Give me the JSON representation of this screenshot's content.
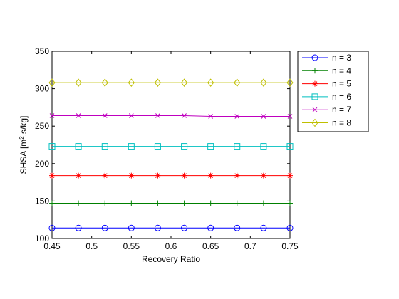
{
  "chart_data": {
    "type": "line",
    "title": "",
    "xlabel": "Recovery Ratio",
    "ylabel_main": "SHSA [m",
    "ylabel_sup": "2",
    "ylabel_tail": ".s/kg]",
    "xlim": [
      0.45,
      0.75
    ],
    "ylim": [
      100,
      350
    ],
    "xticks": [
      0.45,
      0.5,
      0.55,
      0.6,
      0.65,
      0.7,
      0.75
    ],
    "xtick_labels": [
      "0.45",
      "0.5",
      "0.55",
      "0.6",
      "0.65",
      "0.7",
      "0.75"
    ],
    "yticks": [
      100,
      150,
      200,
      250,
      300,
      350
    ],
    "ytick_labels": [
      "100",
      "150",
      "200",
      "250",
      "300",
      "350"
    ],
    "grid": false,
    "legend_position": "outside-top-right",
    "x": [
      0.45,
      0.4833,
      0.5167,
      0.55,
      0.5833,
      0.6167,
      0.65,
      0.6833,
      0.7167,
      0.75
    ],
    "series": [
      {
        "name": "n = 3",
        "color": "#0000ff",
        "marker": "circle",
        "values": [
          114,
          114,
          114,
          114,
          114,
          114,
          114,
          114,
          114,
          114
        ]
      },
      {
        "name": "n = 4",
        "color": "#008000",
        "marker": "plus",
        "values": [
          147,
          147,
          147,
          147,
          147,
          147,
          147,
          147,
          147,
          147
        ]
      },
      {
        "name": "n = 5",
        "color": "#ff0000",
        "marker": "star",
        "values": [
          184,
          184,
          184,
          184,
          184,
          184,
          184,
          184,
          184,
          184
        ]
      },
      {
        "name": "n = 6",
        "color": "#00bfbf",
        "marker": "square",
        "values": [
          223,
          223,
          223,
          223,
          223,
          223,
          223,
          223,
          223,
          223
        ]
      },
      {
        "name": "n = 7",
        "color": "#bf00bf",
        "marker": "x",
        "values": [
          264,
          264,
          264,
          264,
          264,
          264,
          263,
          263,
          263,
          263
        ]
      },
      {
        "name": "n = 8",
        "color": "#bfbf00",
        "marker": "diamond",
        "values": [
          308,
          308,
          308,
          308,
          308,
          308,
          308,
          308,
          308,
          308
        ]
      }
    ]
  }
}
